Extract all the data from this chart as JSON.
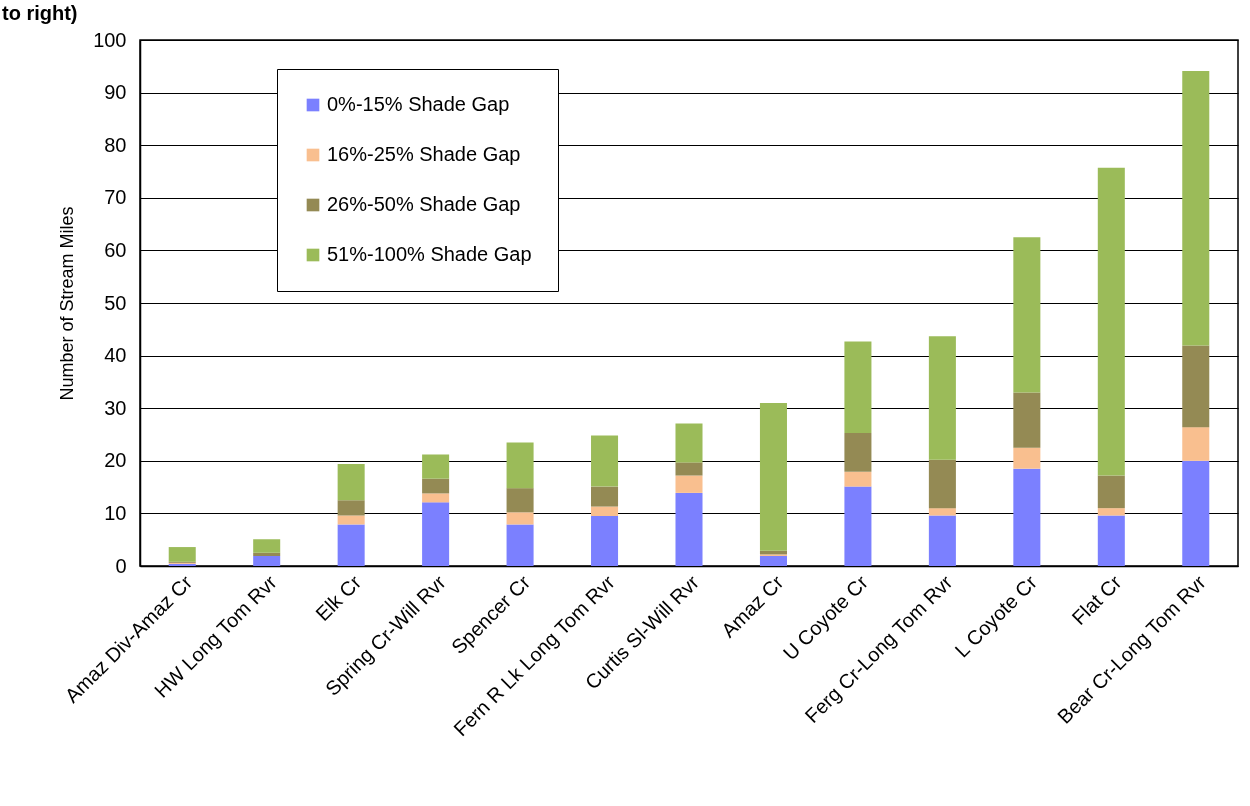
{
  "chart_data": {
    "type": "bar",
    "title": "to right)",
    "ylabel": "Number of Stream Miles",
    "stacked": true,
    "grid": "y",
    "legend": "top left",
    "categories": [
      "Amaz Div-Amaz Cr",
      "HW Long Tom Rvr",
      "Elk Cr",
      "Spring Cr-Will Rvr",
      "Spencer Cr",
      "Fern R Lk Long Tom Rvr",
      "Curtis Sl-Will Rvr",
      "Amaz Cr",
      "U Coyote Cr",
      "Ferg Cr-Long Tom Rvr",
      "L Coyote Cr",
      "Flat Cr",
      "Bear Cr-Long Tom Rvr"
    ],
    "ylim": [
      0,
      100
    ],
    "yticks": [
      0,
      10,
      20,
      30,
      40,
      50,
      60,
      70,
      80,
      90,
      100
    ],
    "series": [
      {
        "name": "0%-15% Shade Gap",
        "color": "#7b80ff",
        "values": [
          0.4,
          1.9,
          7.9,
          12.1,
          7.9,
          9.5,
          13.9,
          1.9,
          15.1,
          9.6,
          18.5,
          9.6,
          20.0
        ]
      },
      {
        "name": "16%-25% Shade Gap",
        "color": "#f9bf8f",
        "values": [
          0.2,
          0,
          1.7,
          1.7,
          2.3,
          1.8,
          3.3,
          0.3,
          2.8,
          1.4,
          4.0,
          1.4,
          6.4
        ]
      },
      {
        "name": "26%-50% Shade Gap",
        "color": "#948a54",
        "values": [
          0.2,
          0.6,
          2.9,
          2.8,
          4.6,
          3.8,
          2.5,
          0.7,
          7.4,
          9.2,
          10.5,
          6.2,
          15.5
        ]
      },
      {
        "name": "51%-100% Shade Gap",
        "color": "#9bbb59",
        "values": [
          2.8,
          2.6,
          6.9,
          4.6,
          8.7,
          9.7,
          7.4,
          28.1,
          17.4,
          23.5,
          29.5,
          58.5,
          52.2
        ]
      }
    ]
  }
}
